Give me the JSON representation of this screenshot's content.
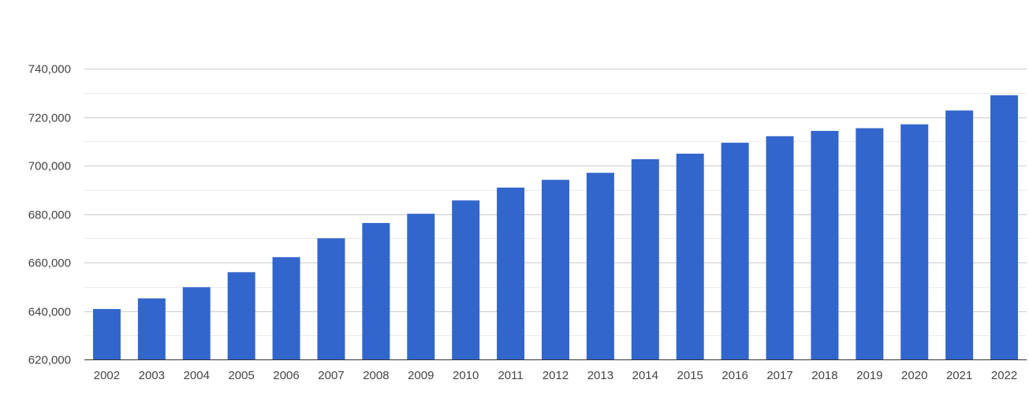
{
  "chart_data": {
    "type": "bar",
    "title": "",
    "xlabel": "",
    "ylabel": "",
    "ylim": [
      620000,
      740000
    ],
    "y_ticks": [
      620000,
      640000,
      660000,
      680000,
      700000,
      720000,
      740000
    ],
    "y_tick_labels": [
      "620,000",
      "640,000",
      "660,000",
      "680,000",
      "700,000",
      "720,000",
      "740,000"
    ],
    "grid": true,
    "bar_color": "#3366cc",
    "categories": [
      "2002",
      "2003",
      "2004",
      "2005",
      "2006",
      "2007",
      "2008",
      "2009",
      "2010",
      "2011",
      "2012",
      "2013",
      "2014",
      "2015",
      "2016",
      "2017",
      "2018",
      "2019",
      "2020",
      "2021",
      "2022"
    ],
    "values": [
      640800,
      645200,
      649800,
      656000,
      662200,
      670000,
      676300,
      680100,
      685600,
      690900,
      694100,
      697000,
      702600,
      704900,
      709400,
      712100,
      714300,
      715400,
      717000,
      722700,
      729000
    ]
  }
}
